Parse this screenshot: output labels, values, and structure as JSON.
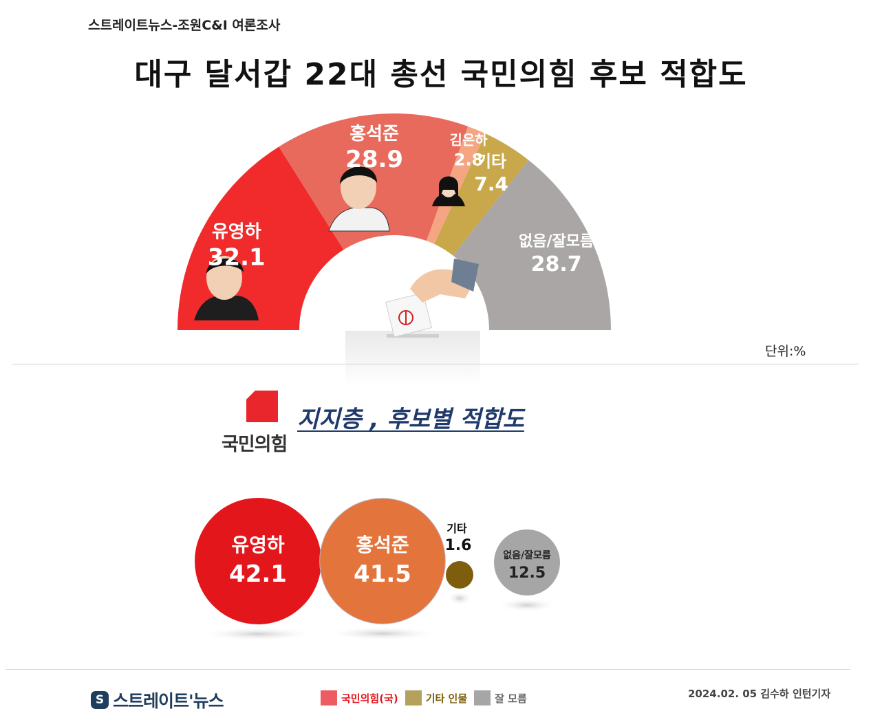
{
  "header": {
    "source": "스트레이트뉴스-조원C&I 여론조사",
    "title": "대구 달서갑 22대 총선 국민의힘 후보 적합도",
    "unit": "단위:%"
  },
  "section2": {
    "party_name": "국민의힘",
    "subtitle": "지지층 , 후보별 적합도"
  },
  "chart_data": [
    {
      "type": "pie",
      "shape": "semicircle",
      "categories": [
        "유영하",
        "홍석준",
        "김은하",
        "기타",
        "없음/잘모름"
      ],
      "values": [
        32.1,
        28.9,
        2.8,
        7.4,
        28.7
      ],
      "colors": [
        "#f12b2b",
        "#e86a5c",
        "#f4a582",
        "#c8a84a",
        "#a9a6a5"
      ]
    },
    {
      "type": "bubble",
      "categories": [
        "유영하",
        "홍석준",
        "기타",
        "없음/잘모름"
      ],
      "values": [
        42.1,
        41.5,
        1.6,
        12.5
      ],
      "colors": [
        "#e3161c",
        "#e2743c",
        "#7e5e0c",
        "#a7a6a6"
      ]
    }
  ],
  "legend": [
    {
      "label": "국민의힘(국)",
      "color": "#ee5b60",
      "text_color": "#e3161c"
    },
    {
      "label": "기타 인물",
      "color": "#b5a15e",
      "text_color": "#7e5e0c"
    },
    {
      "label": "잘 모름",
      "color": "#a7a6a6",
      "text_color": "#666666"
    }
  ],
  "footer": {
    "logo_badge": "S",
    "logo_name": "스트레이트'뉴스",
    "credit": "2024.02. 05 김수하 인턴기자"
  }
}
